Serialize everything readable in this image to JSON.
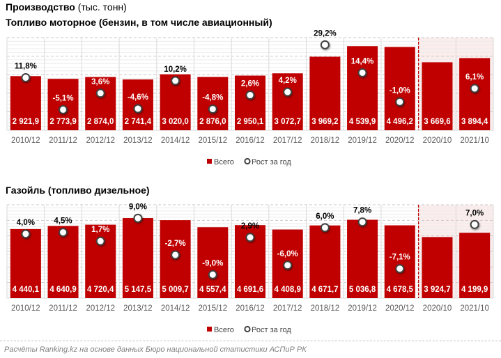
{
  "header": {
    "title_bold": "Производство",
    "title_unit": " (тыс. тонн)"
  },
  "colors": {
    "bar": "#C00000",
    "dot_fill": "#ffffff",
    "dot_stroke": "#404040",
    "divider": "#C00000",
    "shade": "#FBEDEC"
  },
  "legend": {
    "bar_label": "Всего",
    "dot_label": "Рост за год"
  },
  "source": "Расчёты Ranking.kz на основе данных Бюро национальной статистики АСПиР РК",
  "chart_data": [
    {
      "type": "bar",
      "title": "Топливо моторное (бензин, в том числе авиационный)",
      "categories": [
        "2010/12",
        "2011/12",
        "2012/12",
        "2013/12",
        "2014/12",
        "2015/12",
        "2016/12",
        "2017/12",
        "2018/12",
        "2019/12",
        "2020/12",
        "2020/10",
        "2021/10"
      ],
      "series": [
        {
          "name": "Всего",
          "kind": "bar",
          "values": [
            2921.9,
            2773.9,
            2874.0,
            2741.4,
            3020.0,
            2876.0,
            2950.1,
            3072.7,
            3969.2,
            4539.9,
            4496.2,
            3669.6,
            3894.4
          ],
          "labels": [
            "2 921,9",
            "2 773,9",
            "2 874,0",
            "2 741,4",
            "3 020,0",
            "2 876,0",
            "2 950,1",
            "3 072,7",
            "3 969,2",
            "4 539,9",
            "4 496,2",
            "3 669,6",
            "3 894,4"
          ]
        },
        {
          "name": "Рост за год",
          "kind": "marker",
          "values": [
            11.8,
            -5.1,
            3.6,
            -4.6,
            10.2,
            -4.8,
            2.6,
            4.2,
            29.2,
            14.4,
            -1.0,
            null,
            6.1
          ],
          "labels": [
            "11,8%",
            "-5,1%",
            "3,6%",
            "-4,6%",
            "10,2%",
            "-4,8%",
            "2,6%",
            "4,2%",
            "29,2%",
            "14,4%",
            "-1,0%",
            "",
            "6,1%"
          ]
        }
      ],
      "ylim": [
        0,
        5000
      ],
      "y2lim": [
        -16,
        33
      ],
      "grid": true,
      "highlight_from_category": "2020/10",
      "legend_position": "bottom"
    },
    {
      "type": "bar",
      "title": "Газойль (топливо дизельное)",
      "categories": [
        "2010/12",
        "2011/12",
        "2012/12",
        "2013/12",
        "2014/12",
        "2015/12",
        "2016/12",
        "2017/12",
        "2018/12",
        "2019/12",
        "2020/12",
        "2020/10",
        "2021/10"
      ],
      "series": [
        {
          "name": "Всего",
          "kind": "bar",
          "values": [
            4440.1,
            4640.9,
            4720.4,
            5147.5,
            5009.7,
            4557.4,
            4691.6,
            4408.9,
            4671.7,
            5036.8,
            4678.5,
            3924.7,
            4199.9
          ],
          "labels": [
            "4 440,1",
            "4 640,9",
            "4 720,4",
            "5 147,5",
            "5 009,7",
            "4 557,4",
            "4 691,6",
            "4 408,9",
            "4 671,7",
            "5 036,8",
            "4 678,5",
            "3 924,7",
            "4 199,9"
          ]
        },
        {
          "name": "Рост за год",
          "kind": "marker",
          "values": [
            4.0,
            4.5,
            1.7,
            9.0,
            -2.7,
            -9.0,
            2.9,
            -6.0,
            6.0,
            7.8,
            -7.1,
            null,
            7.0
          ],
          "labels": [
            "4,0%",
            "4,5%",
            "1,7%",
            "9,0%",
            "-2,7%",
            "-9,0%",
            "2,9%",
            "-6,0%",
            "6,0%",
            "7,8%",
            "-7,1%",
            "",
            "7,0%"
          ]
        }
      ],
      "ylim": [
        0,
        6000
      ],
      "y2lim": [
        -16.5,
        13.3
      ],
      "grid": true,
      "highlight_from_category": "2020/10",
      "legend_position": "bottom"
    }
  ]
}
